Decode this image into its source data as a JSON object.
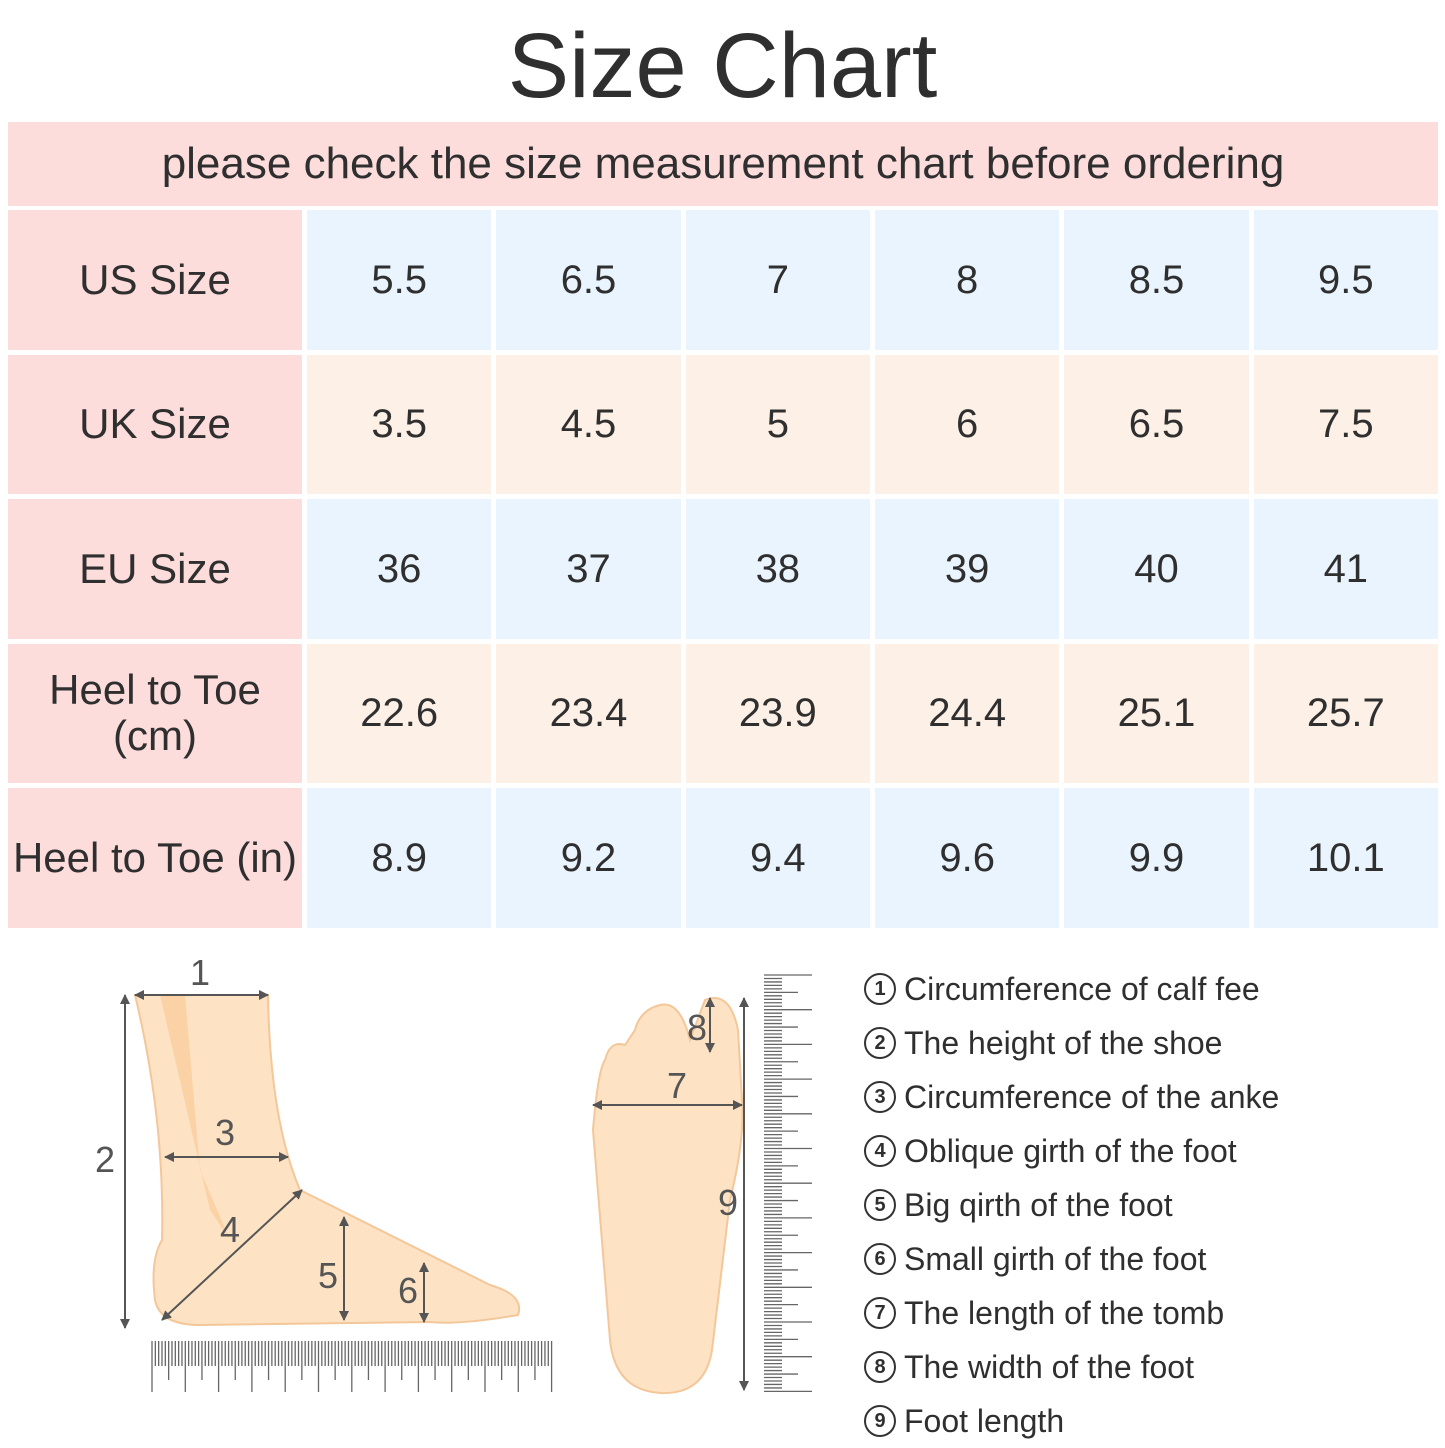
{
  "title": "Size Chart",
  "subtitle": "please check the size measurement chart before ordering",
  "table": {
    "rows": [
      {
        "label": "US Size",
        "values": [
          "5.5",
          "6.5",
          "7",
          "8",
          "8.5",
          "9.5"
        ]
      },
      {
        "label": "UK Size",
        "values": [
          "3.5",
          "4.5",
          "5",
          "6",
          "6.5",
          "7.5"
        ]
      },
      {
        "label": "EU Size",
        "values": [
          "36",
          "37",
          "38",
          "39",
          "40",
          "41"
        ]
      },
      {
        "label": "Heel to Toe (cm)",
        "values": [
          "22.6",
          "23.4",
          "23.9",
          "24.4",
          "25.1",
          "25.7"
        ]
      },
      {
        "label": "Heel to Toe (in)",
        "values": [
          "8.9",
          "9.2",
          "9.4",
          "9.6",
          "9.9",
          "10.1"
        ]
      }
    ]
  },
  "diagram_labels": [
    "1",
    "2",
    "3",
    "4",
    "5",
    "6",
    "7",
    "8",
    "9"
  ],
  "legend": [
    {
      "num": "1",
      "text": "Circumference of calf fee"
    },
    {
      "num": "2",
      "text": "The height of the shoe"
    },
    {
      "num": "3",
      "text": "Circumference of the anke"
    },
    {
      "num": "4",
      "text": "Oblique girth of the foot"
    },
    {
      "num": "5",
      "text": "Big qirth of the foot"
    },
    {
      "num": "6",
      "text": "Small girth of the foot"
    },
    {
      "num": "7",
      "text": "The length of the tomb"
    },
    {
      "num": "8",
      "text": "The width of the foot"
    },
    {
      "num": "9",
      "text": "Foot length"
    }
  ],
  "colors": {
    "label_bg": "#fddcdc",
    "blue_bg": "#eaf4fe",
    "cream_bg": "#fdf0e6",
    "skin": "#fde3c4"
  }
}
